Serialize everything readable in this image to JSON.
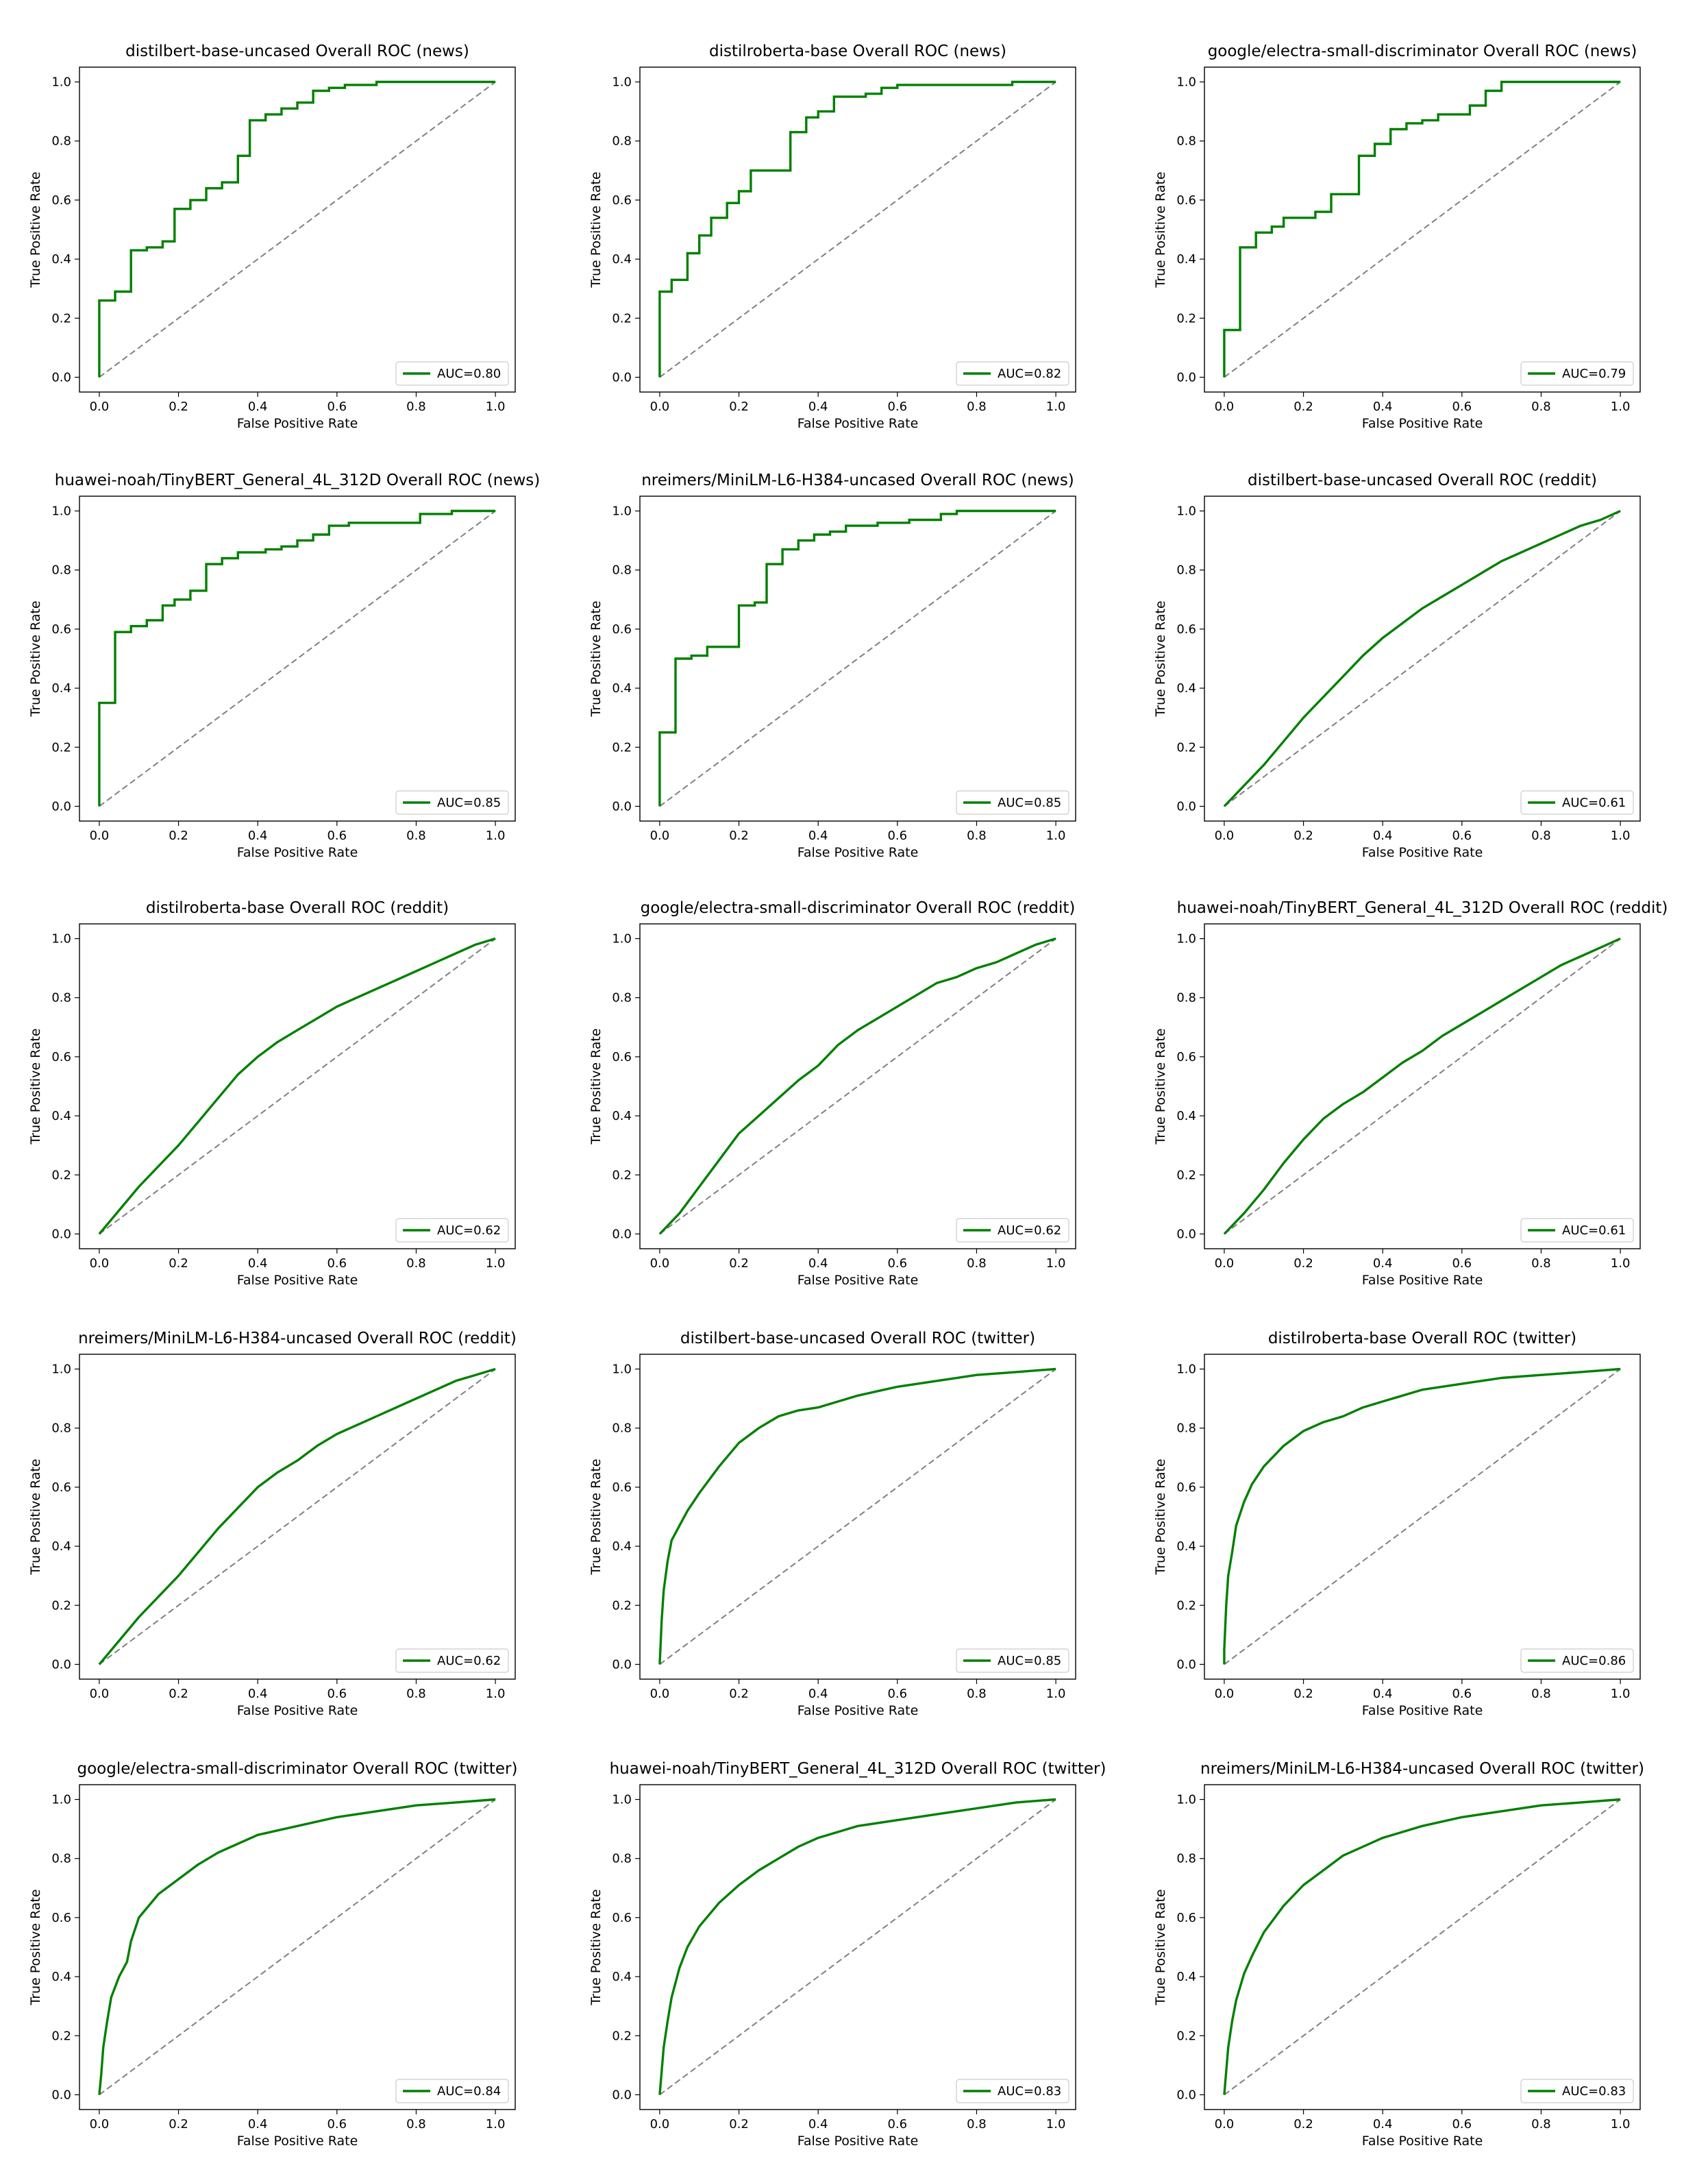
{
  "figure": {
    "xlabel": "False Positive Rate",
    "ylabel": "True Positive Rate",
    "ticks": [
      "0.0",
      "0.2",
      "0.4",
      "0.6",
      "0.8",
      "1.0"
    ],
    "roc_color": "#008000",
    "baseline_color": "#808080"
  },
  "chart_data": [
    {
      "type": "line",
      "title": "distilbert-base-uncased Overall ROC (news)",
      "xlabel": "False Positive Rate",
      "ylabel": "True Positive Rate",
      "xlim": [
        0,
        1
      ],
      "ylim": [
        0,
        1
      ],
      "legend": "lower right",
      "auc_label": "AUC=0.80",
      "curve": "step",
      "x": [
        0,
        0,
        0.04,
        0.04,
        0.08,
        0.08,
        0.12,
        0.12,
        0.16,
        0.16,
        0.19,
        0.19,
        0.23,
        0.23,
        0.27,
        0.27,
        0.31,
        0.31,
        0.35,
        0.35,
        0.38,
        0.38,
        0.42,
        0.42,
        0.46,
        0.46,
        0.5,
        0.5,
        0.54,
        0.54,
        0.58,
        0.58,
        0.62,
        0.62,
        0.7,
        0.7,
        1
      ],
      "y": [
        0,
        0.26,
        0.26,
        0.29,
        0.29,
        0.43,
        0.43,
        0.44,
        0.44,
        0.46,
        0.46,
        0.57,
        0.57,
        0.6,
        0.6,
        0.64,
        0.64,
        0.66,
        0.66,
        0.75,
        0.75,
        0.87,
        0.87,
        0.89,
        0.89,
        0.91,
        0.91,
        0.93,
        0.93,
        0.97,
        0.97,
        0.98,
        0.98,
        0.99,
        0.99,
        1,
        1
      ]
    },
    {
      "type": "line",
      "title": "distilroberta-base Overall ROC (news)",
      "xlabel": "False Positive Rate",
      "ylabel": "True Positive Rate",
      "xlim": [
        0,
        1
      ],
      "ylim": [
        0,
        1
      ],
      "legend": "lower right",
      "auc_label": "AUC=0.82",
      "curve": "step",
      "x": [
        0,
        0,
        0.03,
        0.03,
        0.07,
        0.07,
        0.1,
        0.1,
        0.13,
        0.13,
        0.17,
        0.17,
        0.2,
        0.2,
        0.23,
        0.23,
        0.27,
        0.27,
        0.33,
        0.33,
        0.37,
        0.37,
        0.4,
        0.4,
        0.44,
        0.44,
        0.52,
        0.52,
        0.56,
        0.56,
        0.6,
        0.6,
        0.66,
        0.66,
        0.89,
        0.89,
        1
      ],
      "y": [
        0,
        0.29,
        0.29,
        0.33,
        0.33,
        0.42,
        0.42,
        0.48,
        0.48,
        0.54,
        0.54,
        0.59,
        0.59,
        0.63,
        0.63,
        0.7,
        0.7,
        0.7,
        0.7,
        0.83,
        0.83,
        0.88,
        0.88,
        0.9,
        0.9,
        0.95,
        0.95,
        0.96,
        0.96,
        0.98,
        0.98,
        0.99,
        0.99,
        0.99,
        0.99,
        1,
        1
      ]
    },
    {
      "type": "line",
      "title": "google/electra-small-discriminator Overall ROC (news)",
      "xlabel": "False Positive Rate",
      "ylabel": "True Positive Rate",
      "xlim": [
        0,
        1
      ],
      "ylim": [
        0,
        1
      ],
      "legend": "lower right",
      "auc_label": "AUC=0.79",
      "curve": "step",
      "x": [
        0,
        0,
        0.04,
        0.04,
        0.08,
        0.08,
        0.12,
        0.12,
        0.15,
        0.15,
        0.19,
        0.19,
        0.23,
        0.23,
        0.27,
        0.27,
        0.31,
        0.31,
        0.34,
        0.34,
        0.38,
        0.38,
        0.42,
        0.42,
        0.46,
        0.46,
        0.5,
        0.5,
        0.54,
        0.54,
        0.58,
        0.58,
        0.62,
        0.62,
        0.66,
        0.66,
        0.7,
        0.7,
        1
      ],
      "y": [
        0,
        0.16,
        0.16,
        0.44,
        0.44,
        0.49,
        0.49,
        0.51,
        0.51,
        0.54,
        0.54,
        0.54,
        0.54,
        0.56,
        0.56,
        0.62,
        0.62,
        0.62,
        0.62,
        0.75,
        0.75,
        0.79,
        0.79,
        0.84,
        0.84,
        0.86,
        0.86,
        0.87,
        0.87,
        0.89,
        0.89,
        0.89,
        0.89,
        0.92,
        0.92,
        0.97,
        0.97,
        1,
        1
      ]
    },
    {
      "type": "line",
      "title": "huawei-noah/TinyBERT_General_4L_312D Overall ROC (news)",
      "xlabel": "False Positive Rate",
      "ylabel": "True Positive Rate",
      "xlim": [
        0,
        1
      ],
      "ylim": [
        0,
        1
      ],
      "legend": "lower right",
      "auc_label": "AUC=0.85",
      "curve": "step",
      "x": [
        0,
        0,
        0.04,
        0.04,
        0.08,
        0.08,
        0.12,
        0.12,
        0.16,
        0.16,
        0.19,
        0.19,
        0.23,
        0.23,
        0.27,
        0.27,
        0.31,
        0.31,
        0.35,
        0.35,
        0.38,
        0.38,
        0.42,
        0.42,
        0.46,
        0.46,
        0.5,
        0.5,
        0.54,
        0.54,
        0.58,
        0.58,
        0.63,
        0.63,
        0.81,
        0.81,
        0.89,
        0.89,
        1
      ],
      "y": [
        0,
        0.35,
        0.35,
        0.59,
        0.59,
        0.61,
        0.61,
        0.63,
        0.63,
        0.68,
        0.68,
        0.7,
        0.7,
        0.73,
        0.73,
        0.82,
        0.82,
        0.84,
        0.84,
        0.86,
        0.86,
        0.86,
        0.86,
        0.87,
        0.87,
        0.88,
        0.88,
        0.9,
        0.9,
        0.92,
        0.92,
        0.95,
        0.95,
        0.96,
        0.96,
        0.99,
        0.99,
        1,
        1
      ]
    },
    {
      "type": "line",
      "title": "nreimers/MiniLM-L6-H384-uncased Overall ROC (news)",
      "xlabel": "False Positive Rate",
      "ylabel": "True Positive Rate",
      "xlim": [
        0,
        1
      ],
      "ylim": [
        0,
        1
      ],
      "legend": "lower right",
      "auc_label": "AUC=0.85",
      "curve": "step",
      "x": [
        0,
        0,
        0.04,
        0.04,
        0.08,
        0.08,
        0.12,
        0.12,
        0.2,
        0.2,
        0.24,
        0.24,
        0.27,
        0.27,
        0.31,
        0.31,
        0.35,
        0.35,
        0.39,
        0.39,
        0.43,
        0.43,
        0.47,
        0.47,
        0.55,
        0.55,
        0.63,
        0.63,
        0.71,
        0.71,
        0.75,
        0.75,
        1
      ],
      "y": [
        0,
        0.25,
        0.25,
        0.5,
        0.5,
        0.51,
        0.51,
        0.54,
        0.54,
        0.68,
        0.68,
        0.69,
        0.69,
        0.82,
        0.82,
        0.87,
        0.87,
        0.9,
        0.9,
        0.92,
        0.92,
        0.93,
        0.93,
        0.95,
        0.95,
        0.96,
        0.96,
        0.97,
        0.97,
        0.99,
        0.99,
        1,
        1
      ]
    },
    {
      "type": "line",
      "title": "distilbert-base-uncased Overall ROC (reddit)",
      "xlabel": "False Positive Rate",
      "ylabel": "True Positive Rate",
      "xlim": [
        0,
        1
      ],
      "ylim": [
        0,
        1
      ],
      "legend": "lower right",
      "auc_label": "AUC=0.61",
      "curve": "smooth",
      "x": [
        0,
        0.05,
        0.1,
        0.15,
        0.2,
        0.25,
        0.3,
        0.35,
        0.4,
        0.45,
        0.5,
        0.55,
        0.6,
        0.65,
        0.7,
        0.75,
        0.8,
        0.85,
        0.9,
        0.95,
        1
      ],
      "y": [
        0,
        0.07,
        0.14,
        0.22,
        0.3,
        0.37,
        0.44,
        0.51,
        0.57,
        0.62,
        0.67,
        0.71,
        0.75,
        0.79,
        0.83,
        0.86,
        0.89,
        0.92,
        0.95,
        0.97,
        1
      ]
    },
    {
      "type": "line",
      "title": "distilroberta-base Overall ROC (reddit)",
      "xlabel": "False Positive Rate",
      "ylabel": "True Positive Rate",
      "xlim": [
        0,
        1
      ],
      "ylim": [
        0,
        1
      ],
      "legend": "lower right",
      "auc_label": "AUC=0.62",
      "curve": "smooth",
      "x": [
        0,
        0.05,
        0.1,
        0.15,
        0.2,
        0.25,
        0.3,
        0.35,
        0.4,
        0.45,
        0.5,
        0.55,
        0.6,
        0.65,
        0.7,
        0.75,
        0.8,
        0.85,
        0.9,
        0.95,
        1
      ],
      "y": [
        0,
        0.08,
        0.16,
        0.23,
        0.3,
        0.38,
        0.46,
        0.54,
        0.6,
        0.65,
        0.69,
        0.73,
        0.77,
        0.8,
        0.83,
        0.86,
        0.89,
        0.92,
        0.95,
        0.98,
        1
      ]
    },
    {
      "type": "line",
      "title": "google/electra-small-discriminator Overall ROC (reddit)",
      "xlabel": "False Positive Rate",
      "ylabel": "True Positive Rate",
      "xlim": [
        0,
        1
      ],
      "ylim": [
        0,
        1
      ],
      "legend": "lower right",
      "auc_label": "AUC=0.62",
      "curve": "smooth",
      "x": [
        0,
        0.05,
        0.1,
        0.15,
        0.2,
        0.25,
        0.3,
        0.35,
        0.4,
        0.45,
        0.5,
        0.55,
        0.6,
        0.65,
        0.7,
        0.75,
        0.8,
        0.85,
        0.9,
        0.95,
        1
      ],
      "y": [
        0,
        0.07,
        0.16,
        0.25,
        0.34,
        0.4,
        0.46,
        0.52,
        0.57,
        0.64,
        0.69,
        0.73,
        0.77,
        0.81,
        0.85,
        0.87,
        0.9,
        0.92,
        0.95,
        0.98,
        1
      ]
    },
    {
      "type": "line",
      "title": "huawei-noah/TinyBERT_General_4L_312D Overall ROC (reddit)",
      "xlabel": "False Positive Rate",
      "ylabel": "True Positive Rate",
      "xlim": [
        0,
        1
      ],
      "ylim": [
        0,
        1
      ],
      "legend": "lower right",
      "auc_label": "AUC=0.61",
      "curve": "smooth",
      "x": [
        0,
        0.05,
        0.1,
        0.15,
        0.2,
        0.25,
        0.3,
        0.35,
        0.4,
        0.45,
        0.5,
        0.55,
        0.6,
        0.65,
        0.7,
        0.75,
        0.8,
        0.85,
        0.9,
        0.95,
        1
      ],
      "y": [
        0,
        0.07,
        0.15,
        0.24,
        0.32,
        0.39,
        0.44,
        0.48,
        0.53,
        0.58,
        0.62,
        0.67,
        0.71,
        0.75,
        0.79,
        0.83,
        0.87,
        0.91,
        0.94,
        0.97,
        1
      ]
    },
    {
      "type": "line",
      "title": "nreimers/MiniLM-L6-H384-uncased Overall ROC (reddit)",
      "xlabel": "False Positive Rate",
      "ylabel": "True Positive Rate",
      "xlim": [
        0,
        1
      ],
      "ylim": [
        0,
        1
      ],
      "legend": "lower right",
      "auc_label": "AUC=0.62",
      "curve": "smooth",
      "x": [
        0,
        0.05,
        0.1,
        0.15,
        0.2,
        0.25,
        0.3,
        0.35,
        0.4,
        0.45,
        0.5,
        0.55,
        0.6,
        0.65,
        0.7,
        0.75,
        0.8,
        0.85,
        0.9,
        0.95,
        1
      ],
      "y": [
        0,
        0.08,
        0.16,
        0.23,
        0.3,
        0.38,
        0.46,
        0.53,
        0.6,
        0.65,
        0.69,
        0.74,
        0.78,
        0.81,
        0.84,
        0.87,
        0.9,
        0.93,
        0.96,
        0.98,
        1
      ]
    },
    {
      "type": "line",
      "title": "distilbert-base-uncased Overall ROC (twitter)",
      "xlabel": "False Positive Rate",
      "ylabel": "True Positive Rate",
      "xlim": [
        0,
        1
      ],
      "ylim": [
        0,
        1
      ],
      "legend": "lower right",
      "auc_label": "AUC=0.85",
      "curve": "smooth",
      "x": [
        0,
        0.005,
        0.01,
        0.02,
        0.03,
        0.05,
        0.07,
        0.1,
        0.15,
        0.2,
        0.25,
        0.3,
        0.35,
        0.4,
        0.5,
        0.6,
        0.7,
        0.8,
        0.9,
        1
      ],
      "y": [
        0,
        0.15,
        0.25,
        0.35,
        0.42,
        0.47,
        0.52,
        0.58,
        0.67,
        0.75,
        0.8,
        0.84,
        0.86,
        0.87,
        0.91,
        0.94,
        0.96,
        0.98,
        0.99,
        1
      ]
    },
    {
      "type": "line",
      "title": "distilroberta-base Overall ROC (twitter)",
      "xlabel": "False Positive Rate",
      "ylabel": "True Positive Rate",
      "xlim": [
        0,
        1
      ],
      "ylim": [
        0,
        1
      ],
      "legend": "lower right",
      "auc_label": "AUC=0.86",
      "curve": "smooth",
      "x": [
        0,
        0,
        0.005,
        0.01,
        0.02,
        0.03,
        0.05,
        0.07,
        0.1,
        0.15,
        0.2,
        0.25,
        0.3,
        0.35,
        0.4,
        0.5,
        0.6,
        0.7,
        0.8,
        0.9,
        1
      ],
      "y": [
        0,
        0.05,
        0.2,
        0.3,
        0.38,
        0.47,
        0.55,
        0.61,
        0.67,
        0.74,
        0.79,
        0.82,
        0.84,
        0.87,
        0.89,
        0.93,
        0.95,
        0.97,
        0.98,
        0.99,
        1
      ]
    },
    {
      "type": "line",
      "title": "google/electra-small-discriminator Overall ROC (twitter)",
      "xlabel": "False Positive Rate",
      "ylabel": "True Positive Rate",
      "xlim": [
        0,
        1
      ],
      "ylim": [
        0,
        1
      ],
      "legend": "lower right",
      "auc_label": "AUC=0.84",
      "curve": "smooth",
      "x": [
        0,
        0.005,
        0.01,
        0.02,
        0.03,
        0.05,
        0.07,
        0.08,
        0.1,
        0.15,
        0.2,
        0.25,
        0.3,
        0.35,
        0.4,
        0.5,
        0.6,
        0.7,
        0.8,
        0.9,
        1
      ],
      "y": [
        0,
        0.07,
        0.16,
        0.25,
        0.33,
        0.4,
        0.45,
        0.52,
        0.6,
        0.68,
        0.73,
        0.78,
        0.82,
        0.85,
        0.88,
        0.91,
        0.94,
        0.96,
        0.98,
        0.99,
        1
      ]
    },
    {
      "type": "line",
      "title": "huawei-noah/TinyBERT_General_4L_312D Overall ROC (twitter)",
      "xlabel": "False Positive Rate",
      "ylabel": "True Positive Rate",
      "xlim": [
        0,
        1
      ],
      "ylim": [
        0,
        1
      ],
      "legend": "lower right",
      "auc_label": "AUC=0.83",
      "curve": "smooth",
      "x": [
        0,
        0.005,
        0.01,
        0.02,
        0.03,
        0.05,
        0.07,
        0.1,
        0.15,
        0.2,
        0.25,
        0.3,
        0.35,
        0.4,
        0.5,
        0.6,
        0.7,
        0.8,
        0.9,
        1
      ],
      "y": [
        0,
        0.08,
        0.16,
        0.25,
        0.33,
        0.43,
        0.5,
        0.57,
        0.65,
        0.71,
        0.76,
        0.8,
        0.84,
        0.87,
        0.91,
        0.93,
        0.95,
        0.97,
        0.99,
        1
      ]
    },
    {
      "type": "line",
      "title": "nreimers/MiniLM-L6-H384-uncased Overall ROC (twitter)",
      "xlabel": "False Positive Rate",
      "ylabel": "True Positive Rate",
      "xlim": [
        0,
        1
      ],
      "ylim": [
        0,
        1
      ],
      "legend": "lower right",
      "auc_label": "AUC=0.83",
      "curve": "smooth",
      "x": [
        0,
        0.005,
        0.01,
        0.02,
        0.03,
        0.05,
        0.07,
        0.1,
        0.15,
        0.2,
        0.25,
        0.3,
        0.35,
        0.4,
        0.5,
        0.6,
        0.7,
        0.8,
        0.9,
        1
      ],
      "y": [
        0,
        0.08,
        0.16,
        0.25,
        0.32,
        0.41,
        0.47,
        0.55,
        0.64,
        0.71,
        0.76,
        0.81,
        0.84,
        0.87,
        0.91,
        0.94,
        0.96,
        0.98,
        0.99,
        1
      ]
    }
  ]
}
